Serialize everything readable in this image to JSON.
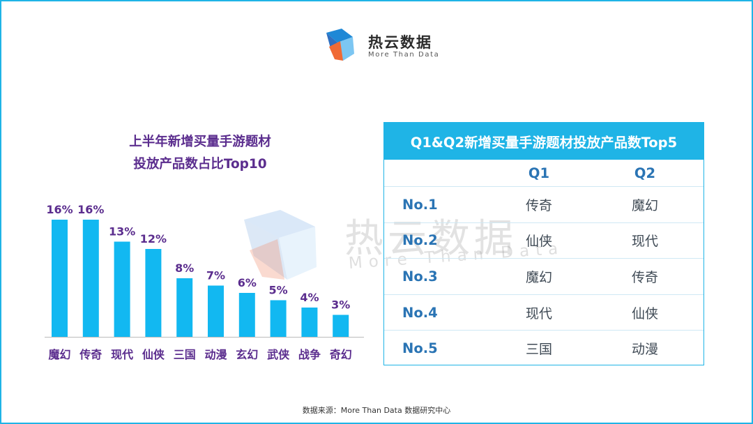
{
  "logo": {
    "name": "热云数据",
    "sub": "More Than Data"
  },
  "watermark": {
    "name": "热云数据",
    "sub": "More Than Data"
  },
  "chart_title": {
    "line1": "上半年新增买量手游题材",
    "line2": "投放产品数占比Top10"
  },
  "chart_data": {
    "type": "bar",
    "categories": [
      "魔幻",
      "传奇",
      "现代",
      "仙侠",
      "三国",
      "动漫",
      "玄幻",
      "武侠",
      "战争",
      "奇幻"
    ],
    "values": [
      16,
      16,
      13,
      12,
      8,
      7,
      6,
      5,
      4,
      3
    ],
    "value_labels": [
      "16%",
      "16%",
      "13%",
      "12%",
      "8%",
      "7%",
      "6%",
      "5%",
      "4%",
      "3%"
    ],
    "unit": "%",
    "ylim": [
      0,
      18
    ],
    "grid": false,
    "colors": {
      "bar": "#12b8f1",
      "label": "#5b2d8e",
      "axis": "#bbbbbb"
    }
  },
  "table": {
    "title": "Q1&Q2新增买量手游题材投放产品数Top5",
    "headers": [
      "",
      "Q1",
      "Q2"
    ],
    "rows": [
      {
        "rank": "No.1",
        "q1": "传奇",
        "q2": "魔幻"
      },
      {
        "rank": "No.2",
        "q1": "仙侠",
        "q2": "现代"
      },
      {
        "rank": "No.3",
        "q1": "魔幻",
        "q2": "传奇"
      },
      {
        "rank": "No.4",
        "q1": "现代",
        "q2": "仙侠"
      },
      {
        "rank": "No.5",
        "q1": "三国",
        "q2": "动漫"
      }
    ]
  },
  "source": "数据来源：More Than Data 数据研究中心",
  "colors": {
    "border": "#1fb4e6",
    "header_bg": "#1fb4e6",
    "rank": "#2a74b4",
    "title": "#5b2d8e"
  }
}
